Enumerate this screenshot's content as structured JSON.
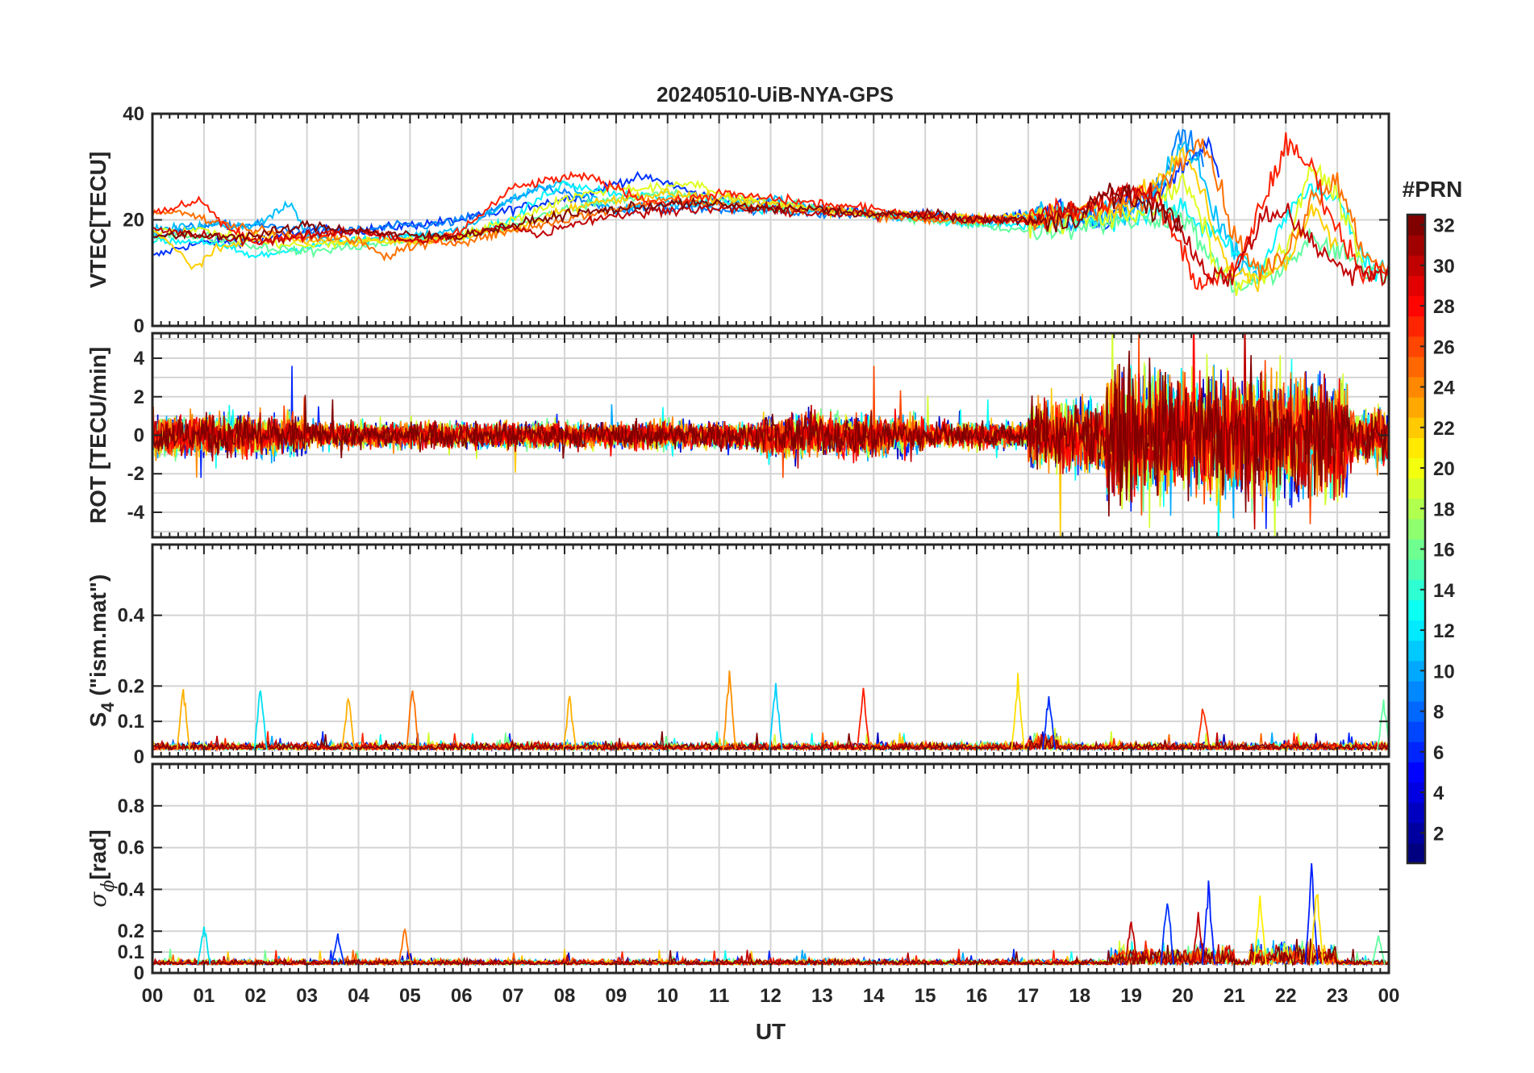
{
  "chart_data": [
    {
      "type": "line",
      "title": "20240510-UiB-NYA-GPS",
      "ylabel": "VTEC[TECU]",
      "ylim": [
        0,
        40
      ],
      "yticks": [
        0,
        20,
        40
      ],
      "xlim": [
        0,
        24
      ],
      "grid": true,
      "series": [
        {
          "prn": 3,
          "color": "#0032ff",
          "x": [
            0,
            0.3,
            0.6,
            1.2,
            2,
            2.5,
            3,
            4,
            5,
            6,
            6.5,
            7,
            7.5,
            8,
            8.5,
            9,
            9.5,
            10,
            10.5,
            11,
            12,
            13,
            14,
            15,
            16,
            17,
            17.5,
            18,
            18.5,
            19,
            19.5,
            20,
            20.3,
            20.5,
            20.7
          ],
          "y": [
            13,
            14,
            15,
            16,
            16,
            17,
            18,
            18,
            19,
            20,
            21,
            22,
            23,
            24,
            25,
            27,
            28,
            27,
            25,
            24,
            23,
            22,
            21,
            21,
            20,
            21,
            22,
            21,
            20,
            23,
            25,
            30,
            33,
            34,
            28
          ]
        },
        {
          "prn": 7,
          "color": "#0080ff",
          "x": [
            0,
            0.5,
            1,
            2,
            3,
            4,
            5,
            5.5,
            6,
            6.5,
            7,
            7.5,
            8,
            8.5,
            9,
            9.5,
            10,
            11,
            12,
            13,
            14,
            15,
            16,
            17,
            18,
            19,
            19.5,
            19.8,
            20,
            20.2,
            20.4
          ],
          "y": [
            17,
            18,
            19,
            19,
            18,
            18,
            19,
            19,
            20,
            21,
            24,
            26,
            25,
            23,
            22,
            22,
            22,
            22,
            22,
            21,
            21,
            21,
            20,
            20,
            20,
            22,
            26,
            33,
            36,
            34,
            30
          ]
        },
        {
          "prn": 10,
          "color": "#00bfff",
          "x": [
            0,
            1,
            2,
            2.7,
            3,
            4,
            5,
            6,
            6.5,
            7,
            7.5,
            8,
            8.5,
            9,
            10,
            11,
            12,
            13,
            14,
            15,
            16,
            17,
            18,
            19,
            19.5,
            19.8,
            20,
            20.3,
            20.6,
            21,
            21.5
          ],
          "y": [
            18,
            19,
            19,
            23,
            17,
            16,
            17,
            18,
            21,
            24,
            26,
            27,
            24,
            22,
            23,
            23,
            24,
            22,
            21,
            20,
            20,
            21,
            22,
            22,
            25,
            30,
            35,
            30,
            22,
            14,
            9
          ]
        },
        {
          "prn": 13,
          "color": "#00f4ff",
          "x": [
            0,
            1,
            2,
            3,
            4,
            5,
            6,
            7,
            7.5,
            8,
            9,
            10,
            11,
            12,
            13,
            14,
            15,
            16,
            17,
            18,
            19,
            20,
            21,
            21.5,
            22,
            22.5,
            23,
            23.5,
            24
          ],
          "y": [
            16,
            16,
            13,
            15,
            16,
            17,
            17,
            20,
            24,
            27,
            25,
            24,
            23,
            22,
            22,
            21,
            20,
            19,
            19,
            20,
            21,
            22,
            14,
            10,
            21,
            26,
            24,
            12,
            11
          ]
        },
        {
          "prn": 16,
          "color": "#60ff9f",
          "x": [
            0,
            1,
            2,
            3,
            4,
            5,
            6,
            7,
            8,
            9,
            10,
            11,
            12,
            13,
            14,
            15,
            16,
            17,
            18,
            19,
            20,
            20.5,
            21,
            21.5,
            22,
            22.5,
            23,
            23.5,
            24
          ],
          "y": [
            17,
            17,
            15,
            14,
            15,
            16,
            17,
            19,
            22,
            24,
            25,
            24,
            23,
            22,
            21,
            20,
            19,
            18,
            19,
            20,
            21,
            13,
            7,
            8,
            12,
            16,
            14,
            11,
            10
          ]
        },
        {
          "prn": 19,
          "color": "#dfff20",
          "x": [
            0,
            1,
            2,
            3,
            4,
            5,
            6,
            7,
            8,
            9,
            10,
            10.5,
            11,
            12,
            13,
            14,
            15,
            16,
            17,
            18,
            19,
            19.5,
            20,
            20.3,
            20.6,
            21,
            21.5,
            22,
            22.5,
            23,
            23.5
          ],
          "y": [
            18,
            18,
            16,
            15,
            16,
            16,
            17,
            20,
            24,
            26,
            26,
            27,
            25,
            23,
            22,
            21,
            21,
            20,
            20,
            20,
            21,
            23,
            27,
            22,
            12,
            8,
            9,
            14,
            30,
            25,
            12
          ]
        },
        {
          "prn": 22,
          "color": "#ffcf00",
          "x": [
            0,
            0.5,
            0.8,
            1.2,
            2,
            3,
            4,
            5,
            6,
            7,
            8,
            9,
            10,
            11,
            12,
            13,
            14,
            15,
            16,
            17,
            18,
            19,
            19.5,
            20,
            20.3,
            20.6,
            21,
            21.5,
            22,
            22.5,
            23
          ],
          "y": [
            18,
            14,
            11,
            14,
            17,
            16,
            16,
            16,
            17,
            18,
            22,
            24,
            25,
            24,
            23,
            22,
            21,
            21,
            20,
            21,
            22,
            23,
            27,
            32,
            28,
            18,
            10,
            8,
            12,
            22,
            15
          ]
        },
        {
          "prn": 25,
          "color": "#ff7000",
          "x": [
            0,
            0.5,
            1,
            2,
            3,
            4,
            4.5,
            5,
            6,
            7,
            8,
            9,
            10,
            11,
            12,
            13,
            14,
            15,
            16,
            17,
            18,
            19,
            19.5,
            20,
            20.3,
            20.6,
            21,
            21.5,
            22,
            22.5,
            23,
            23.5,
            24
          ],
          "y": [
            21,
            22,
            20,
            18,
            17,
            16,
            13,
            15,
            16,
            18,
            20,
            22,
            24,
            23,
            22,
            22,
            21,
            20,
            20,
            20,
            21,
            23,
            26,
            31,
            37,
            30,
            17,
            10,
            13,
            24,
            28,
            14,
            11
          ]
        },
        {
          "prn": 27,
          "color": "#ff1e00",
          "x": [
            0,
            0.4,
            0.9,
            1.5,
            2,
            3,
            4,
            5,
            5.5,
            6,
            6.5,
            7,
            7.5,
            8,
            8.5,
            9,
            9.5,
            10,
            10.5,
            11,
            12,
            13,
            14,
            15,
            16,
            17,
            18,
            19,
            19.5,
            20,
            20.2,
            20.5,
            21,
            21.5,
            22,
            22.5,
            23,
            23.5,
            24
          ],
          "y": [
            21,
            22,
            24,
            18,
            16,
            17,
            18,
            16,
            16,
            18,
            22,
            26,
            27,
            28,
            28,
            26,
            24,
            23,
            24,
            25,
            24,
            23,
            22,
            21,
            20,
            20,
            22,
            25,
            24,
            14,
            9,
            8,
            10,
            22,
            34,
            30,
            18,
            10,
            12
          ]
        },
        {
          "prn": 30,
          "color": "#c00000",
          "x": [
            0,
            1,
            2,
            3,
            4,
            4.5,
            5,
            6,
            6.5,
            7,
            7.5,
            8,
            8.5,
            9,
            9.3,
            10,
            11,
            12,
            13,
            14,
            15,
            16,
            17,
            18,
            18.5,
            19,
            19.5,
            20,
            20.5,
            21,
            21.5,
            22,
            22.5,
            23,
            23.5,
            24
          ],
          "y": [
            18,
            17,
            16,
            17,
            18,
            17,
            16,
            17,
            18,
            19,
            17,
            19,
            20,
            21,
            21,
            22,
            22,
            22,
            21,
            21,
            21,
            20,
            20,
            22,
            24,
            26,
            24,
            17,
            10,
            9,
            20,
            22,
            16,
            11,
            10,
            10
          ]
        },
        {
          "prn": 32,
          "color": "#800000",
          "x": [
            0,
            1,
            2,
            3,
            4,
            5,
            6,
            7,
            8,
            9,
            10,
            11,
            12,
            13,
            14,
            15,
            16,
            17,
            17.5,
            18,
            18.5,
            19,
            19.5,
            20
          ],
          "y": [
            17,
            17,
            17,
            19,
            18,
            17,
            17,
            19,
            21,
            22,
            23,
            23,
            22,
            22,
            21,
            21,
            20,
            20,
            19,
            21,
            25,
            24,
            22,
            19
          ]
        }
      ]
    },
    {
      "type": "line",
      "ylabel": "ROT [TECU/min]",
      "ylim": [
        -5.3,
        5.3
      ],
      "yticks": [
        -4,
        -2,
        0,
        2,
        4
      ],
      "xlim": [
        0,
        24
      ],
      "grid": true,
      "note_series": "dense noisy traces per PRN, amplitude ~0.5 TECU/min quiet, up to ±5 during 17–24 UT"
    },
    {
      "type": "line",
      "ylabel_main": "S",
      "ylabel_sub": "4",
      "ylabel_rest": " (\"ism.mat\")",
      "ylim": [
        0,
        0.6
      ],
      "yticks": [
        0,
        0.1,
        0.2,
        0.4
      ],
      "xlim": [
        0,
        24
      ],
      "grid": true,
      "peaks": [
        {
          "x": 0.6,
          "y": 0.22,
          "color": "#ffaf00"
        },
        {
          "x": 2.1,
          "y": 0.23,
          "color": "#00e0f0"
        },
        {
          "x": 3.8,
          "y": 0.19,
          "color": "#ffaf00"
        },
        {
          "x": 5.05,
          "y": 0.22,
          "color": "#ff7000"
        },
        {
          "x": 8.1,
          "y": 0.19,
          "color": "#ffaf00"
        },
        {
          "x": 11.2,
          "y": 0.27,
          "color": "#ff8f00"
        },
        {
          "x": 12.1,
          "y": 0.24,
          "color": "#00cfff"
        },
        {
          "x": 13.8,
          "y": 0.22,
          "color": "#ff1e00"
        },
        {
          "x": 16.8,
          "y": 0.24,
          "color": "#ffdf00"
        },
        {
          "x": 17.4,
          "y": 0.2,
          "color": "#0030ff"
        },
        {
          "x": 20.4,
          "y": 0.16,
          "color": "#ff3000"
        },
        {
          "x": 23.9,
          "y": 0.17,
          "color": "#60ffa0"
        }
      ]
    },
    {
      "type": "line",
      "ylabel_main": "σ",
      "ylabel_sub": "ϕ",
      "ylabel_rest": "[rad]",
      "ylim": [
        0,
        1
      ],
      "yticks": [
        0,
        0.1,
        0.2,
        0.4,
        0.6,
        0.8
      ],
      "xlim": [
        0,
        24
      ],
      "grid": true,
      "xlabel": "UT",
      "xticklabels": [
        "00",
        "01",
        "02",
        "03",
        "04",
        "05",
        "06",
        "07",
        "08",
        "09",
        "10",
        "11",
        "12",
        "13",
        "14",
        "15",
        "16",
        "17",
        "18",
        "19",
        "20",
        "21",
        "22",
        "23",
        "00"
      ],
      "peaks": [
        {
          "x": 1.0,
          "y": 0.26,
          "color": "#00e0f0"
        },
        {
          "x": 3.6,
          "y": 0.2,
          "color": "#0030ff"
        },
        {
          "x": 4.9,
          "y": 0.23,
          "color": "#ff7000"
        },
        {
          "x": 19.0,
          "y": 0.28,
          "color": "#c00000"
        },
        {
          "x": 19.7,
          "y": 0.42,
          "color": "#0032ff"
        },
        {
          "x": 20.3,
          "y": 0.3,
          "color": "#c00000"
        },
        {
          "x": 20.5,
          "y": 0.45,
          "color": "#0020ff"
        },
        {
          "x": 21.5,
          "y": 0.38,
          "color": "#ffef00"
        },
        {
          "x": 22.5,
          "y": 0.55,
          "color": "#0020ff"
        },
        {
          "x": 22.6,
          "y": 0.48,
          "color": "#ffdf00"
        },
        {
          "x": 23.8,
          "y": 0.2,
          "color": "#60ffa0"
        }
      ]
    }
  ],
  "colorbar": {
    "label": "#PRN",
    "min": 1,
    "max": 32,
    "ticks": [
      2,
      4,
      6,
      8,
      10,
      12,
      14,
      16,
      18,
      20,
      22,
      24,
      26,
      28,
      30,
      32
    ],
    "colormap": "jet"
  }
}
